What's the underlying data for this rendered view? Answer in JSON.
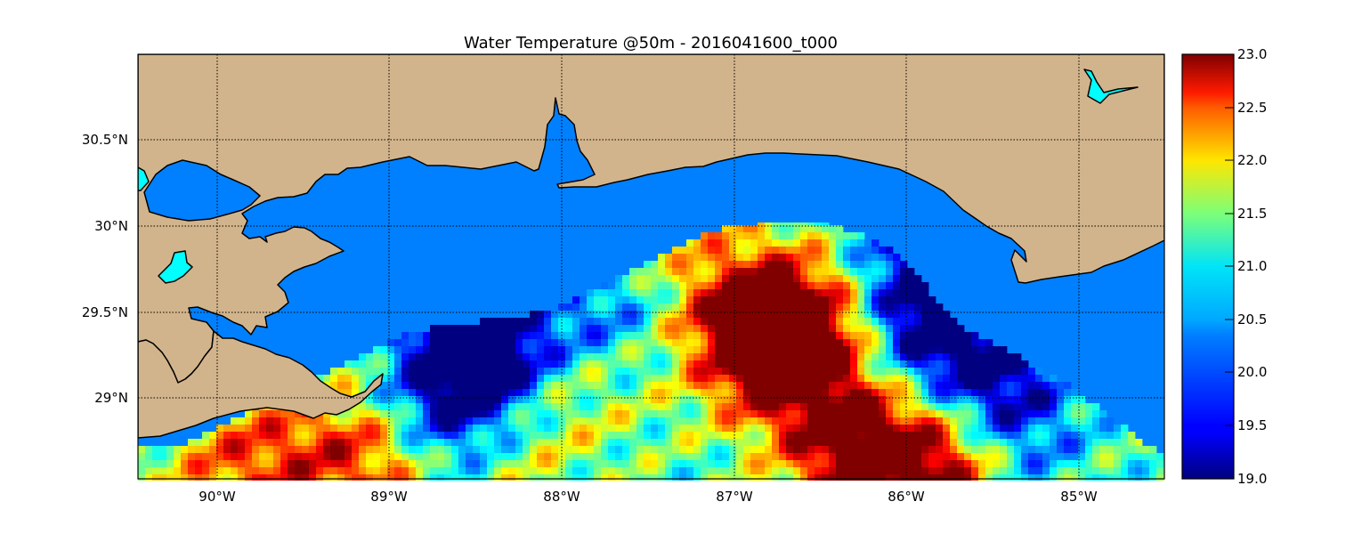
{
  "chart_data": {
    "type": "heatmap",
    "title": "Water Temperature @50m - 2016041600_t000",
    "xlabel": "",
    "ylabel": "",
    "xlim": [
      -90.47,
      -84.5
    ],
    "ylim": [
      28.54,
      31.0
    ],
    "x_ticks": [
      {
        "value": -90,
        "label": "90°W"
      },
      {
        "value": -89,
        "label": "89°W"
      },
      {
        "value": -88,
        "label": "88°W"
      },
      {
        "value": -87,
        "label": "87°W"
      },
      {
        "value": -86,
        "label": "86°W"
      },
      {
        "value": -85,
        "label": "85°W"
      }
    ],
    "y_ticks": [
      {
        "value": 30.5,
        "label": "30.5°N"
      },
      {
        "value": 30.0,
        "label": "30°N"
      },
      {
        "value": 29.5,
        "label": "29.5°N"
      },
      {
        "value": 29.0,
        "label": "29°N"
      }
    ],
    "grid": true,
    "colormap": "jet",
    "colorbar": {
      "vmin": 19.0,
      "vmax": 23.0,
      "ticks": [
        "19.0",
        "19.5",
        "20.0",
        "20.5",
        "21.0",
        "21.5",
        "22.0",
        "22.5",
        "23.0"
      ]
    },
    "masked_value_color": "#0080ff",
    "colors": {
      "land": "#d2b48c",
      "lakes": "#00ffff",
      "coast": "#000000"
    },
    "hotspots": [
      {
        "lon": -86.3,
        "lat": 28.7,
        "value": 23.0
      },
      {
        "lon": -85.8,
        "lat": 28.6,
        "value": 23.0
      },
      {
        "lon": -86.7,
        "lat": 29.4,
        "value": 22.6
      },
      {
        "lon": -86.9,
        "lat": 29.3,
        "value": 22.4
      },
      {
        "lon": -89.1,
        "lat": 28.65,
        "value": 22.3
      },
      {
        "lon": -89.6,
        "lat": 28.7,
        "value": 21.8
      },
      {
        "lon": -90.0,
        "lat": 28.6,
        "value": 21.7
      },
      {
        "lon": -86.4,
        "lat": 29.6,
        "value": 21.8
      },
      {
        "lon": -87.1,
        "lat": 29.7,
        "value": 21.7
      },
      {
        "lon": -87.9,
        "lat": 29.1,
        "value": 21.5
      },
      {
        "lon": -86.5,
        "lat": 29.1,
        "value": 21.6
      },
      {
        "lon": -88.3,
        "lat": 28.7,
        "value": 21.4
      }
    ],
    "coldspots": [
      {
        "lon": -85.9,
        "lat": 29.45,
        "value": 19.1
      },
      {
        "lon": -85.5,
        "lat": 29.2,
        "value": 19.4
      },
      {
        "lon": -86.1,
        "lat": 29.8,
        "value": 19.6
      },
      {
        "lon": -88.4,
        "lat": 29.25,
        "value": 19.3
      },
      {
        "lon": -88.6,
        "lat": 29.35,
        "value": 19.4
      },
      {
        "lon": -88.7,
        "lat": 28.88,
        "value": 19.5
      },
      {
        "lon": -87.8,
        "lat": 29.5,
        "value": 19.8
      },
      {
        "lon": -85.4,
        "lat": 28.8,
        "value": 19.8
      }
    ]
  }
}
